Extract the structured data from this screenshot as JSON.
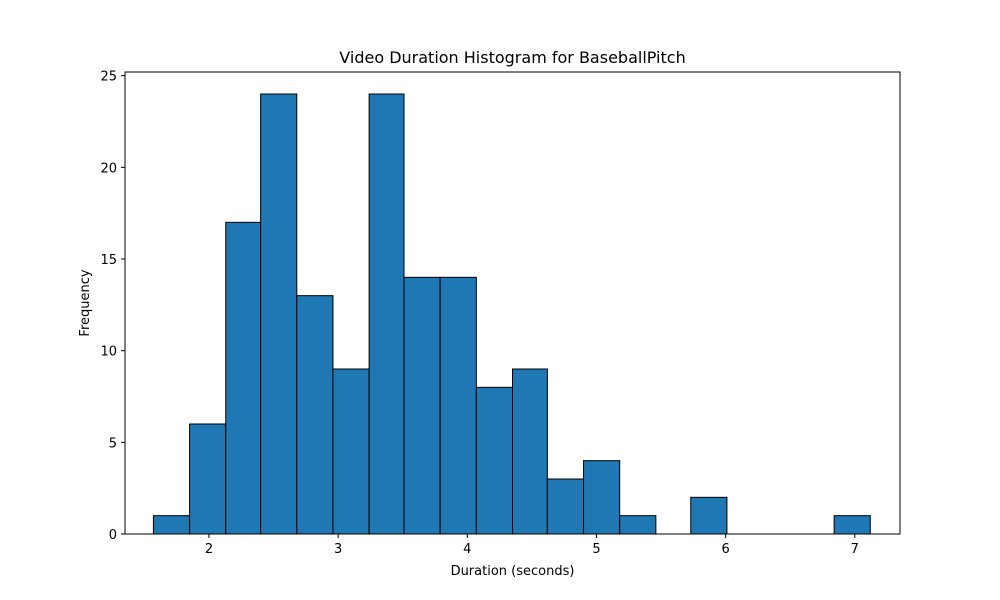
{
  "chart_data": {
    "type": "bar",
    "title": "Video Duration Histogram for BaseballPitch",
    "xlabel": "Duration (seconds)",
    "ylabel": "Frequency",
    "xlim": [
      1.35,
      7.35
    ],
    "ylim": [
      0,
      25.2
    ],
    "xticks": [
      "2",
      "3",
      "4",
      "5",
      "6",
      "7"
    ],
    "yticks": [
      "0",
      "5",
      "10",
      "15",
      "20",
      "25"
    ],
    "grid": false,
    "bar_color": "#1f77b4",
    "edge_color": "#000000",
    "bins": [
      {
        "start": 1.57,
        "end": 1.85,
        "count": 1
      },
      {
        "start": 1.85,
        "end": 2.13,
        "count": 6
      },
      {
        "start": 2.13,
        "end": 2.4,
        "count": 17
      },
      {
        "start": 2.4,
        "end": 2.68,
        "count": 24
      },
      {
        "start": 2.68,
        "end": 2.96,
        "count": 13
      },
      {
        "start": 2.96,
        "end": 3.24,
        "count": 9
      },
      {
        "start": 3.24,
        "end": 3.51,
        "count": 24
      },
      {
        "start": 3.51,
        "end": 3.79,
        "count": 14
      },
      {
        "start": 3.79,
        "end": 4.07,
        "count": 14
      },
      {
        "start": 4.07,
        "end": 4.35,
        "count": 8
      },
      {
        "start": 4.35,
        "end": 4.62,
        "count": 9
      },
      {
        "start": 4.62,
        "end": 4.9,
        "count": 3
      },
      {
        "start": 4.9,
        "end": 5.18,
        "count": 4
      },
      {
        "start": 5.18,
        "end": 5.46,
        "count": 1
      },
      {
        "start": 5.46,
        "end": 5.73,
        "count": 0
      },
      {
        "start": 5.73,
        "end": 6.01,
        "count": 2
      },
      {
        "start": 6.01,
        "end": 6.29,
        "count": 0
      },
      {
        "start": 6.29,
        "end": 6.57,
        "count": 0
      },
      {
        "start": 6.57,
        "end": 6.84,
        "count": 0
      },
      {
        "start": 6.84,
        "end": 7.12,
        "count": 1
      }
    ]
  }
}
